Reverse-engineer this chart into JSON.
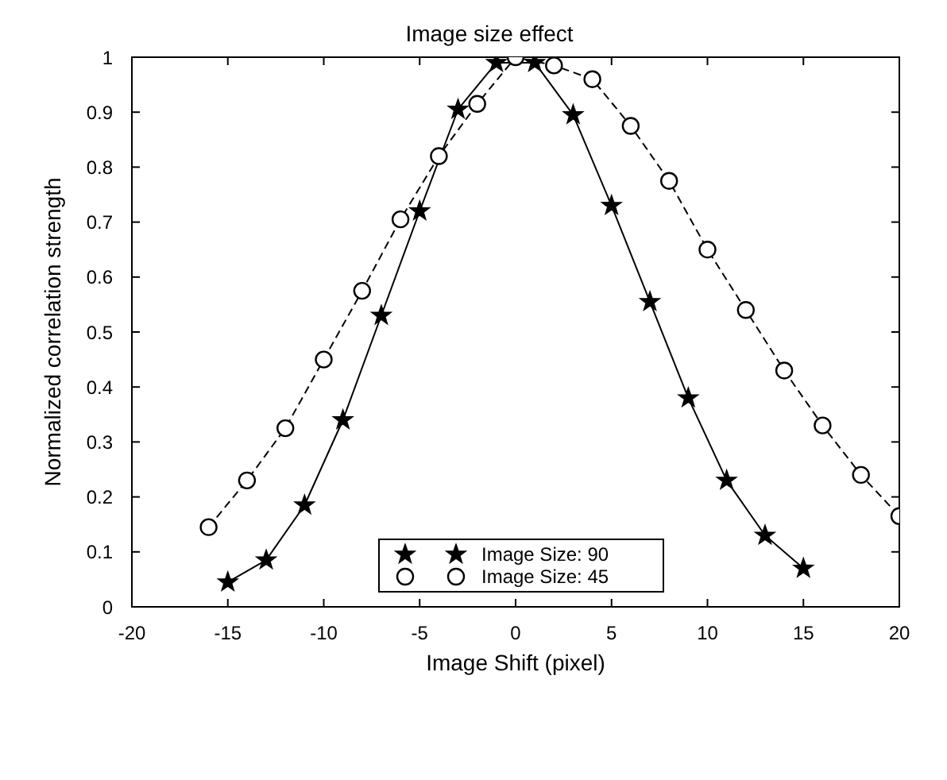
{
  "chart_data": {
    "type": "line",
    "title": "Image size effect",
    "xlabel": "Image Shift (pixel)",
    "ylabel": "Normalized correlation strength",
    "xlim": [
      -20,
      20
    ],
    "xticks": [
      -20,
      -15,
      -10,
      -5,
      0,
      5,
      10,
      15,
      20
    ],
    "ylim": [
      0,
      1
    ],
    "yticks": [
      0,
      0.1,
      0.2,
      0.3,
      0.4,
      0.5,
      0.6,
      0.7,
      0.8,
      0.9,
      1
    ],
    "grid": false,
    "legend": "bottom",
    "series": [
      {
        "name": "Image Size: 90",
        "color": "#000000",
        "marker": "star",
        "line_style": "solid",
        "x": [
          -15,
          -13,
          -11,
          -9,
          -7,
          -5,
          -3,
          -1,
          1,
          3,
          5,
          7,
          9,
          11,
          13,
          15
        ],
        "values": [
          0.045,
          0.085,
          0.185,
          0.34,
          0.53,
          0.72,
          0.905,
          0.99,
          0.99,
          0.895,
          0.73,
          0.555,
          0.38,
          0.23,
          0.13,
          0.07
        ]
      },
      {
        "name": "Image Size: 45",
        "color": "#000000",
        "marker": "circle",
        "line_style": "dashed",
        "x": [
          -16,
          -14,
          -12,
          -10,
          -8,
          -6,
          -4,
          -2,
          0,
          2,
          4,
          6,
          8,
          10,
          12,
          14,
          16,
          18,
          20
        ],
        "values": [
          0.145,
          0.23,
          0.325,
          0.45,
          0.575,
          0.705,
          0.82,
          0.915,
          1.0,
          0.985,
          0.96,
          0.875,
          0.775,
          0.65,
          0.54,
          0.43,
          0.33,
          0.24,
          0.165
        ]
      }
    ]
  }
}
